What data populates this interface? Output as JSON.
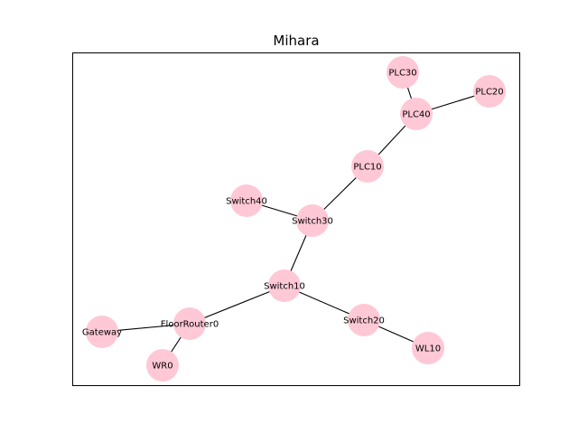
{
  "title": "Mihara",
  "node_color": "#ffc8d6",
  "edge_color": "#000000",
  "nodes": [
    {
      "id": "PLC30",
      "label": "PLC30"
    },
    {
      "id": "PLC20",
      "label": "PLC20"
    },
    {
      "id": "PLC40",
      "label": "PLC40"
    },
    {
      "id": "PLC10",
      "label": "PLC10"
    },
    {
      "id": "Switch40",
      "label": "Switch40"
    },
    {
      "id": "Switch30",
      "label": "Switch30"
    },
    {
      "id": "Switch10",
      "label": "Switch10"
    },
    {
      "id": "Switch20",
      "label": "Switch20"
    },
    {
      "id": "FloorRouter0",
      "label": "FloorRouter0"
    },
    {
      "id": "Gateway",
      "label": "Gateway"
    },
    {
      "id": "WL10",
      "label": "WL10"
    },
    {
      "id": "WR0",
      "label": "WR0"
    }
  ],
  "edges": [
    [
      "PLC30",
      "PLC40"
    ],
    [
      "PLC40",
      "PLC20"
    ],
    [
      "PLC40",
      "PLC10"
    ],
    [
      "PLC10",
      "Switch30"
    ],
    [
      "Switch40",
      "Switch30"
    ],
    [
      "Switch30",
      "Switch10"
    ],
    [
      "Switch10",
      "FloorRouter0"
    ],
    [
      "Switch10",
      "Switch20"
    ],
    [
      "Switch20",
      "WL10"
    ],
    [
      "FloorRouter0",
      "Gateway"
    ],
    [
      "FloorRouter0",
      "WR0"
    ]
  ]
}
